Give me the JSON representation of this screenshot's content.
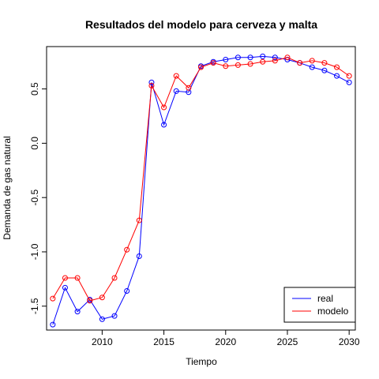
{
  "chart_data": {
    "type": "line",
    "title": "Resultados del modelo para cerveza y malta",
    "xlabel": "Tiempo",
    "ylabel": "Demanda de gas natural",
    "xlim": [
      2005.5,
      2030.5
    ],
    "ylim": [
      -1.72,
      0.89
    ],
    "x_ticks": [
      2010,
      2015,
      2020,
      2025,
      2030
    ],
    "y_ticks": [
      -1.5,
      -1.0,
      -0.5,
      0.0,
      0.5
    ],
    "y_tick_labels": [
      "-1.5",
      "-1.0",
      "-0.5",
      "0.0",
      "0.5"
    ],
    "legend_position": "bottom-right",
    "x": [
      2006,
      2007,
      2008,
      2009,
      2010,
      2011,
      2012,
      2013,
      2014,
      2015,
      2016,
      2017,
      2018,
      2019,
      2020,
      2021,
      2022,
      2023,
      2024,
      2025,
      2026,
      2027,
      2028,
      2029,
      2030
    ],
    "series": [
      {
        "name": "real",
        "color": "#0000ff",
        "values": [
          -1.67,
          -1.33,
          -1.55,
          -1.44,
          -1.62,
          -1.59,
          -1.36,
          -1.04,
          0.56,
          0.17,
          0.48,
          0.47,
          0.71,
          0.75,
          0.77,
          0.79,
          0.79,
          0.8,
          0.79,
          0.77,
          0.74,
          0.7,
          0.67,
          0.62,
          0.56
        ]
      },
      {
        "name": "modelo",
        "color": "#ff0000",
        "values": [
          -1.43,
          -1.24,
          -1.24,
          -1.45,
          -1.42,
          -1.24,
          -0.98,
          -0.71,
          0.53,
          0.33,
          0.62,
          0.51,
          0.7,
          0.74,
          0.71,
          0.72,
          0.73,
          0.75,
          0.76,
          0.79,
          0.74,
          0.76,
          0.74,
          0.7,
          0.62
        ]
      }
    ]
  }
}
